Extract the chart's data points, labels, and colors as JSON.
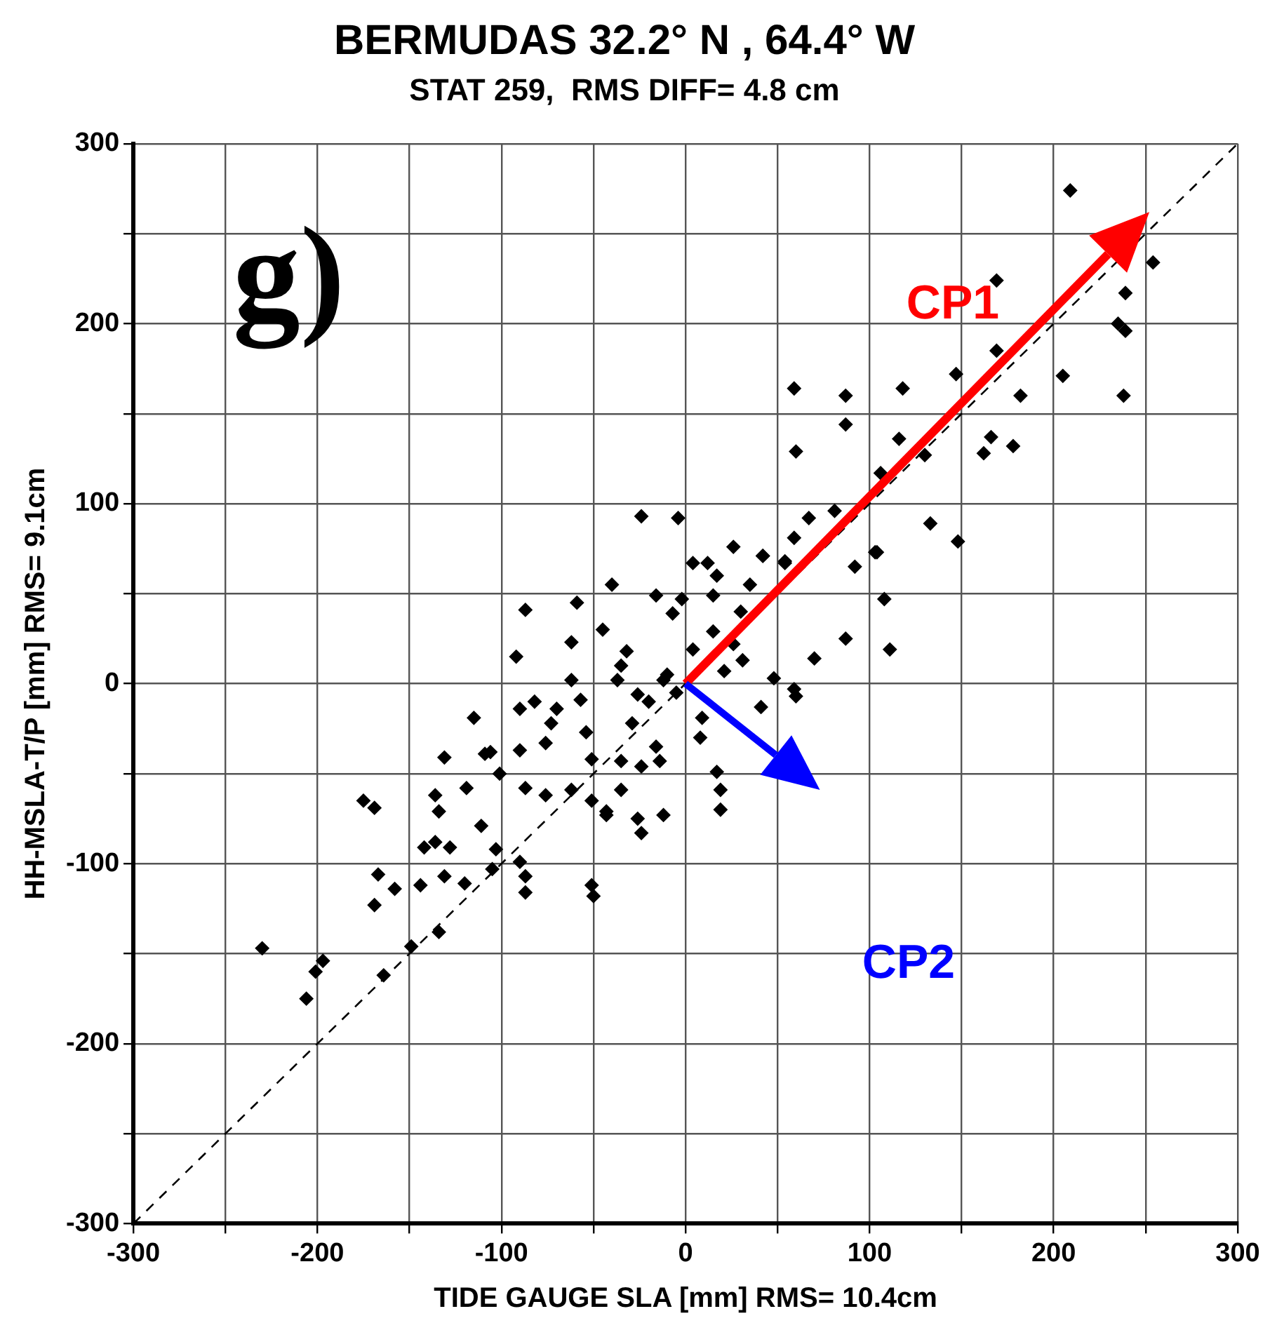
{
  "chart_data": {
    "type": "scatter",
    "title": "BERMUDAS 32.2° N , 64.4° W",
    "subtitle": "STAT 259,  RMS DIFF= 4.8 cm",
    "xlabel": "TIDE GAUGE SLA [mm] RMS= 10.4cm",
    "ylabel": "HH-MSLA-T/P [mm] RMS= 9.1cm",
    "annotations": [
      "g)",
      "CP1",
      "CP2"
    ],
    "xlim": [
      -300,
      300
    ],
    "ylim": [
      -300,
      300
    ],
    "xticks": [
      -300,
      {
        "value": -250,
        "label": null
      },
      -200,
      {
        "value": -150,
        "label": null
      },
      -100,
      {
        "value": -50,
        "label": null
      },
      0,
      {
        "value": 50,
        "label": null
      },
      100,
      {
        "value": 150,
        "label": null
      },
      200,
      {
        "value": 250,
        "label": null
      },
      300
    ],
    "yticks": [
      -300,
      {
        "value": -250,
        "label": null
      },
      -200,
      {
        "value": -150,
        "label": null
      },
      -100,
      {
        "value": -50,
        "label": null
      },
      0,
      {
        "value": 50,
        "label": null
      },
      100,
      {
        "value": 150,
        "label": null
      },
      200,
      {
        "value": 250,
        "label": null
      },
      300
    ],
    "grid": true,
    "legend": false,
    "marker": "diamond",
    "series": [
      {
        "color": "#000000",
        "x": [
          209,
          254,
          239,
          235,
          239,
          238,
          169,
          205,
          169,
          147,
          182,
          118,
          87,
          59,
          87,
          60,
          116,
          130,
          166,
          178,
          162,
          106,
          133,
          148,
          81,
          67,
          59,
          42,
          54,
          104,
          92,
          111,
          103,
          108,
          -24,
          -4,
          26,
          4,
          12,
          17,
          42,
          54,
          -2,
          -16,
          -7,
          15,
          -87,
          -59,
          -45,
          -62,
          -32,
          -35,
          -37,
          4,
          15,
          26,
          31,
          21,
          87,
          70,
          -12,
          48,
          59,
          -92,
          -62,
          -26,
          -20,
          9,
          41,
          60,
          -115,
          -90,
          -82,
          -70,
          -73,
          -57,
          -54,
          -29,
          -106,
          -90,
          -76,
          -51,
          -35,
          -16,
          -14,
          17,
          19,
          19,
          -101,
          -87,
          -76,
          -62,
          -51,
          -35,
          -43,
          -12,
          -26,
          -131,
          -109,
          -24,
          -175,
          -169,
          -136,
          -134,
          -119,
          -43,
          -24,
          -111,
          -136,
          -142,
          -128,
          -103,
          -90,
          -105,
          -167,
          -158,
          -144,
          -131,
          -120,
          -87,
          -87,
          -51,
          -50,
          -169,
          -134,
          -149,
          -164,
          -230,
          -197,
          -201,
          -206,
          -10,
          -5,
          30,
          35,
          -40,
          8
        ],
        "values": [
          274,
          234,
          217,
          200,
          196,
          160,
          224,
          171,
          185,
          172,
          160,
          164,
          160,
          164,
          144,
          129,
          136,
          127,
          137,
          132,
          128,
          117,
          89,
          79,
          96,
          92,
          81,
          71,
          68,
          73,
          65,
          19,
          73,
          47,
          93,
          92,
          76,
          67,
          67,
          60,
          71,
          67,
          47,
          49,
          39,
          49,
          41,
          45,
          30,
          23,
          18,
          10,
          2,
          19,
          29,
          22,
          13,
          7,
          25,
          14,
          2,
          3,
          -3,
          15,
          2,
          -6,
          -10,
          -19,
          -13,
          -7,
          -19,
          -14,
          -10,
          -14,
          -22,
          -9,
          -27,
          -22,
          -38,
          -37,
          -33,
          -42,
          -43,
          -35,
          -43,
          -49,
          -59,
          -70,
          -50,
          -58,
          -62,
          -59,
          -65,
          -59,
          -73,
          -73,
          -75,
          -41,
          -39,
          -46,
          -65,
          -69,
          -62,
          -71,
          -58,
          -71,
          -83,
          -79,
          -88,
          -91,
          -91,
          -92,
          -99,
          -103,
          -106,
          -114,
          -112,
          -107,
          -111,
          -107,
          -116,
          -112,
          -118,
          -123,
          -138,
          -146,
          -162,
          -147,
          -154,
          -160,
          -175,
          5,
          -5,
          40,
          55,
          55,
          -30
        ]
      },
      {
        "type": "line",
        "color": "#000000",
        "line_style": "dashed",
        "marker": "none",
        "x": [
          -300,
          300
        ],
        "values": [
          -300,
          300
        ]
      }
    ]
  }
}
